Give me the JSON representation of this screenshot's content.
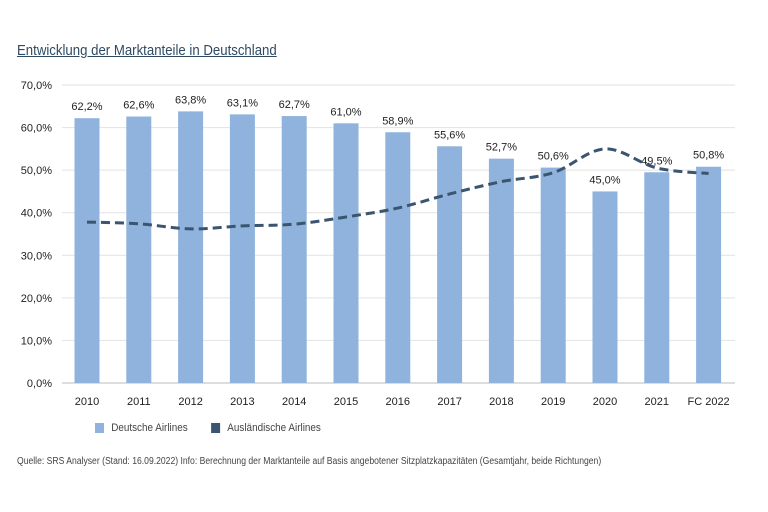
{
  "chart_data": {
    "type": "bar",
    "title": "Entwicklung der Marktanteile in Deutschland",
    "categories": [
      "2010",
      "2011",
      "2012",
      "2013",
      "2014",
      "2015",
      "2016",
      "2017",
      "2018",
      "2019",
      "2020",
      "2021",
      "FC 2022"
    ],
    "series": [
      {
        "name": "Deutsche Airlines",
        "type": "bar",
        "color": "#8fb3dc",
        "values": [
          62.2,
          62.6,
          63.8,
          63.1,
          62.7,
          61.0,
          58.9,
          55.6,
          52.7,
          50.6,
          45.0,
          49.5,
          50.8
        ],
        "labels": [
          "62,2%",
          "62,6%",
          "63,8%",
          "63,1%",
          "62,7%",
          "61,0%",
          "58,9%",
          "55,6%",
          "52,7%",
          "50,6%",
          "45,0%",
          "49,5%",
          "50,8%"
        ]
      },
      {
        "name": "Ausländische Airlines",
        "type": "line",
        "style": "dashed",
        "color": "#3b5570",
        "values": [
          37.8,
          37.4,
          36.2,
          36.9,
          37.3,
          39.0,
          41.1,
          44.4,
          47.3,
          49.4,
          55.0,
          50.5,
          49.2
        ]
      }
    ],
    "ylim": [
      0,
      70
    ],
    "yticks": [
      "0,0%",
      "10,0%",
      "20,0%",
      "30,0%",
      "40,0%",
      "50,0%",
      "60,0%",
      "70,0%"
    ],
    "grid": true,
    "legend": "bottom-left"
  },
  "source": "Quelle: SRS Analyser (Stand: 16.09.2022)   Info: Berechnung der Marktanteile auf Basis angebotener Sitzplatzkapazitäten (Gesamtjahr, beide Richtungen)"
}
